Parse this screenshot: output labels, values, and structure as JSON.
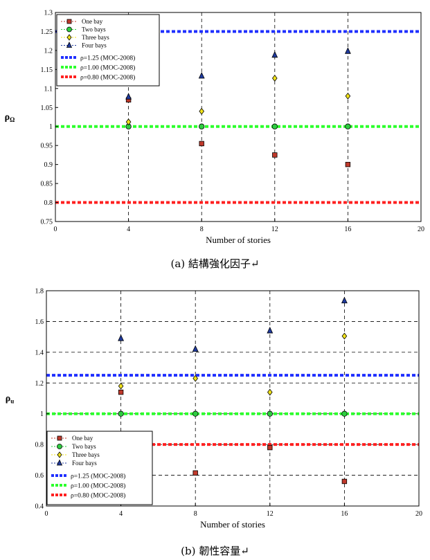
{
  "chart_data": [
    {
      "type": "scatter",
      "caption": "(a) 結構強化因子↵",
      "ylabel_main": "ρ",
      "ylabel_sub": "Ω",
      "xlabel": "Number of stories",
      "xlim": [
        0,
        20
      ],
      "ylim": [
        0.75,
        1.3
      ],
      "x_ticks": [
        "0",
        "4",
        "8",
        "12",
        "16",
        "20"
      ],
      "y_ticks": [
        "0.75",
        "0.8",
        "0.85",
        "0.9",
        "0.95",
        "1",
        "1.05",
        "1.1",
        "1.15",
        "1.2",
        "1.25",
        "1.3"
      ],
      "grid": "dashed vertical at 4, 8, 12, 16",
      "legend_position": "top-left",
      "series": [
        {
          "name": "One bay",
          "marker": "square",
          "color": "#c0392b",
          "x": [
            4,
            8,
            12,
            16
          ],
          "y": [
            1.07,
            0.955,
            0.925,
            0.9
          ]
        },
        {
          "name": "Two bays",
          "marker": "circle",
          "color": "#2ecc40",
          "x": [
            4,
            8,
            12,
            16
          ],
          "y": [
            1.0,
            1.0,
            1.0,
            1.0
          ]
        },
        {
          "name": "Three bays",
          "marker": "diamond",
          "color": "#f1e21a",
          "x": [
            4,
            8,
            12,
            16
          ],
          "y": [
            1.012,
            1.04,
            1.127,
            1.08
          ]
        },
        {
          "name": "Four bays",
          "marker": "triangle",
          "color": "#1f3a9e",
          "x": [
            4,
            8,
            12,
            16
          ],
          "y": [
            1.078,
            1.133,
            1.188,
            1.198
          ]
        }
      ],
      "reference_lines": [
        {
          "label": "ρ=1.25 (MOC-2008)",
          "y": 1.25,
          "color": "#1f2fff"
        },
        {
          "label": "ρ=1.00 (MOC-2008)",
          "y": 1.0,
          "color": "#2cff2c"
        },
        {
          "label": "ρ=0.80 (MOC-2008)",
          "y": 0.8,
          "color": "#ff2020"
        }
      ]
    },
    {
      "type": "scatter",
      "caption": "(b) 韌性容量↵",
      "ylabel_main": "ρ",
      "ylabel_sub": "u",
      "xlabel": "Number of stories",
      "xlim": [
        0,
        20
      ],
      "ylim": [
        0.4,
        1.8
      ],
      "x_ticks": [
        "0",
        "4",
        "8",
        "12",
        "16",
        "20"
      ],
      "y_ticks": [
        "0.4",
        "0.6",
        "0.8",
        "1",
        "1.2",
        "1.4",
        "1.6",
        "1.8"
      ],
      "grid": "dashed both axes",
      "legend_position": "bottom-left",
      "series": [
        {
          "name": "One bay",
          "marker": "square",
          "color": "#c0392b",
          "x": [
            4,
            8,
            12,
            16
          ],
          "y": [
            1.14,
            0.615,
            0.78,
            0.56
          ]
        },
        {
          "name": "Two bays",
          "marker": "circle",
          "color": "#2ecc40",
          "x": [
            4,
            8,
            12,
            16
          ],
          "y": [
            1.0,
            1.0,
            1.0,
            1.0
          ]
        },
        {
          "name": "Three bays",
          "marker": "diamond",
          "color": "#f1e21a",
          "x": [
            4,
            8,
            12,
            16
          ],
          "y": [
            1.18,
            1.23,
            1.14,
            1.505
          ]
        },
        {
          "name": "Four bays",
          "marker": "triangle",
          "color": "#1f3a9e",
          "x": [
            4,
            8,
            12,
            16
          ],
          "y": [
            1.49,
            1.42,
            1.54,
            1.735
          ]
        }
      ],
      "reference_lines": [
        {
          "label": "ρ=1.25 (MOC-2008)",
          "y": 1.25,
          "color": "#1f2fff"
        },
        {
          "label": "ρ=1.00 (MOC-2008)",
          "y": 1.0,
          "color": "#2cff2c"
        },
        {
          "label": "ρ=0.80 (MOC-2008)",
          "y": 0.8,
          "color": "#ff2020"
        }
      ]
    }
  ]
}
